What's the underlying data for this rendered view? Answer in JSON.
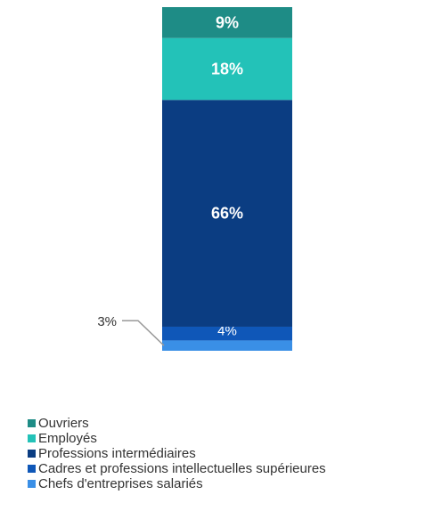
{
  "chart_data": {
    "type": "bar",
    "stacked": true,
    "percent": true,
    "categories": [
      ""
    ],
    "series": [
      {
        "name": "Chefs d'entreprises salariés",
        "values": [
          3
        ],
        "label": "3%",
        "label_outside": true,
        "color": "#3a8fe6"
      },
      {
        "name": "Cadres et professions intellectuelles supérieures",
        "values": [
          4
        ],
        "label": "4%",
        "color": "#0f57b8"
      },
      {
        "name": "Professions intermédiaires",
        "values": [
          66
        ],
        "label": "66%",
        "color": "#0b3d82"
      },
      {
        "name": "Employés",
        "values": [
          18
        ],
        "label": "18%",
        "color": "#23c2b8"
      },
      {
        "name": "Ouvriers",
        "values": [
          9
        ],
        "label": "9%",
        "color": "#1e8c86"
      }
    ],
    "ylim": [
      0,
      100
    ],
    "grid": false,
    "legend_position": "bottom-left",
    "legend_order": [
      "Ouvriers",
      "Employés",
      "Professions intermédiaires",
      "Cadres et professions intellectuelles supérieures",
      "Chefs d'entreprises salariés"
    ],
    "label_color": "#ffffff",
    "leader_color": "#999999"
  }
}
